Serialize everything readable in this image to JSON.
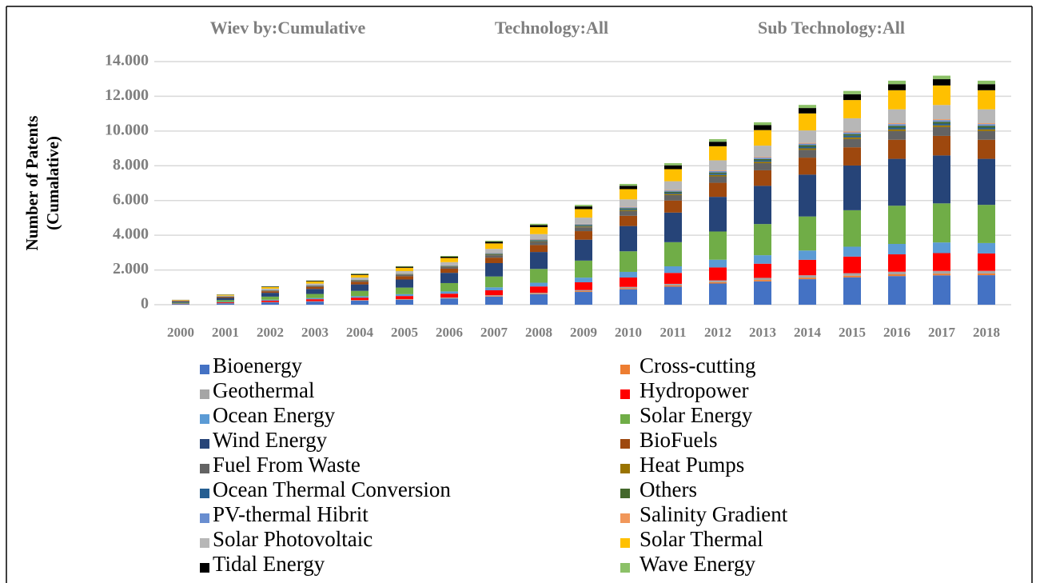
{
  "chart_data": {
    "type": "stacked_bar",
    "annotations": [
      "Wiev by:Cumulative",
      "Technology:All",
      "Sub Technology:All"
    ],
    "ylabel_lines": [
      "Number of Patents",
      "(Cumalative)"
    ],
    "categories": [
      "2000",
      "2001",
      "2002",
      "2003",
      "2004",
      "2005",
      "2006",
      "2007",
      "2008",
      "2009",
      "2010",
      "2011",
      "2012",
      "2013",
      "2014",
      "2015",
      "2016",
      "2017",
      "2018"
    ],
    "ylim": [
      0,
      14000
    ],
    "yticks": [
      0,
      {
        "value": 2000,
        "label": "2.000"
      },
      {
        "value": 4000,
        "label": "4.000"
      },
      {
        "value": 6000,
        "label": "6.000"
      },
      {
        "value": 8000,
        "label": "8.000"
      },
      {
        "value": 10000,
        "label": "10.000"
      },
      {
        "value": 12000,
        "label": "12.000"
      },
      {
        "value": 14000,
        "label": "14.000"
      }
    ],
    "grid": true,
    "series": [
      {
        "name": "Bioenergy",
        "color": "#4472c4",
        "values": [
          40,
          80,
          135,
          180,
          230,
          285,
          360,
          470,
          600,
          735,
          890,
          1040,
          1220,
          1345,
          1470,
          1575,
          1650,
          1690,
          1700
        ]
      },
      {
        "name": "Cross-cutting",
        "color": "#ed7d31",
        "values": [
          0,
          5,
          10,
          10,
          15,
          15,
          20,
          30,
          35,
          45,
          55,
          65,
          75,
          80,
          90,
          95,
          100,
          100,
          100
        ]
      },
      {
        "name": "Geothermal",
        "color": "#a5a5a5",
        "values": [
          0,
          5,
          10,
          15,
          20,
          25,
          35,
          45,
          55,
          65,
          80,
          95,
          110,
          120,
          135,
          145,
          150,
          155,
          150
        ]
      },
      {
        "name": "Hydropower",
        "color": "#ff0000",
        "values": [
          20,
          45,
          80,
          110,
          140,
          175,
          220,
          285,
          360,
          445,
          540,
          630,
          740,
          815,
          890,
          955,
          1000,
          1025,
          1000
        ]
      },
      {
        "name": "Ocean Energy",
        "color": "#5b9bd5",
        "values": [
          10,
          30,
          50,
          65,
          85,
          105,
          130,
          170,
          215,
          270,
          325,
          380,
          445,
          490,
          535,
          570,
          600,
          615,
          600
        ]
      },
      {
        "name": "Solar Energy",
        "color": "#70ad47",
        "values": [
          50,
          100,
          180,
          240,
          305,
          380,
          480,
          625,
          795,
          980,
          1185,
          1390,
          1625,
          1795,
          1960,
          2100,
          2200,
          2250,
          2200
        ]
      },
      {
        "name": "Wind Energy",
        "color": "#264478",
        "values": [
          60,
          125,
          220,
          290,
          375,
          465,
          590,
          770,
          975,
          1205,
          1455,
          1705,
          1995,
          2200,
          2410,
          2575,
          2700,
          2760,
          2650
        ]
      },
      {
        "name": "BioFuels",
        "color": "#9e480e",
        "values": [
          30,
          50,
          90,
          120,
          150,
          190,
          240,
          315,
          400,
          490,
          590,
          695,
          810,
          895,
          980,
          1050,
          1100,
          1125,
          1100
        ]
      },
      {
        "name": "Fuel From Waste",
        "color": "#636363",
        "values": [
          10,
          25,
          40,
          55,
          70,
          85,
          110,
          140,
          180,
          225,
          270,
          315,
          370,
          410,
          445,
          475,
          500,
          510,
          500
        ]
      },
      {
        "name": "Heat Pumps",
        "color": "#997300",
        "values": [
          0,
          5,
          10,
          10,
          15,
          15,
          20,
          30,
          35,
          45,
          55,
          65,
          75,
          80,
          90,
          95,
          100,
          100,
          100
        ]
      },
      {
        "name": "Ocean Thermal Conversion",
        "color": "#255e91",
        "values": [
          0,
          5,
          10,
          10,
          15,
          15,
          20,
          30,
          35,
          45,
          55,
          65,
          75,
          80,
          90,
          95,
          100,
          100,
          100
        ]
      },
      {
        "name": "Others",
        "color": "#43682b",
        "values": [
          0,
          5,
          10,
          10,
          15,
          15,
          20,
          30,
          35,
          45,
          55,
          65,
          75,
          80,
          90,
          95,
          100,
          100,
          100
        ]
      },
      {
        "name": "PV-thermal Hibrit",
        "color": "#698ed0",
        "values": [
          0,
          5,
          10,
          10,
          15,
          15,
          20,
          30,
          35,
          45,
          55,
          65,
          75,
          80,
          90,
          95,
          100,
          100,
          100
        ]
      },
      {
        "name": "Salinity Gradient",
        "color": "#f1975a",
        "values": [
          0,
          0,
          5,
          5,
          5,
          10,
          10,
          15,
          20,
          20,
          25,
          30,
          35,
          40,
          45,
          50,
          50,
          50,
          50
        ]
      },
      {
        "name": "Solar Photovoltaic",
        "color": "#b7b7b7",
        "values": [
          20,
          35,
          65,
          85,
          110,
          140,
          175,
          230,
          290,
          355,
          430,
          505,
          590,
          650,
          715,
          765,
          800,
          820,
          800
        ]
      },
      {
        "name": "Solar Thermal",
        "color": "#ffc000",
        "values": [
          30,
          50,
          90,
          120,
          150,
          190,
          240,
          315,
          400,
          490,
          590,
          695,
          810,
          895,
          980,
          1050,
          1100,
          1125,
          1100
        ]
      },
      {
        "name": "Tidal Energy",
        "color": "#000000",
        "values": [
          10,
          15,
          30,
          40,
          50,
          60,
          75,
          100,
          125,
          155,
          190,
          220,
          260,
          285,
          310,
          335,
          350,
          360,
          350
        ]
      },
      {
        "name": "Wave Energy",
        "color": "#8cc168",
        "values": [
          0,
          10,
          15,
          20,
          30,
          35,
          45,
          55,
          70,
          90,
          110,
          125,
          150,
          165,
          180,
          190,
          200,
          205,
          200
        ]
      }
    ]
  }
}
